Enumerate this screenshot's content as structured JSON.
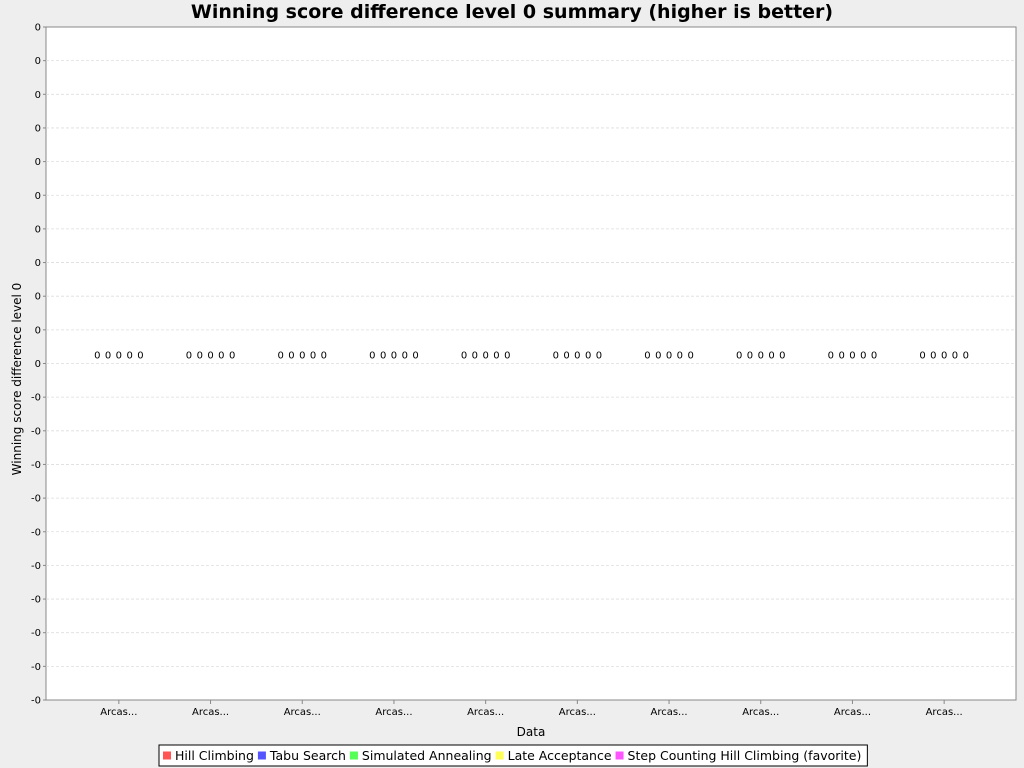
{
  "chart_data": {
    "type": "bar",
    "title": "Winning score difference level 0 summary (higher is better)",
    "xlabel": "Data",
    "ylabel": "Winning score difference level 0",
    "categories": [
      "Arcas...",
      "Arcas...",
      "Arcas...",
      "Arcas...",
      "Arcas...",
      "Arcas...",
      "Arcas...",
      "Arcas...",
      "Arcas...",
      "Arcas..."
    ],
    "series": [
      {
        "name": "Hill Climbing",
        "color": "#ff5555",
        "values": [
          0,
          0,
          0,
          0,
          0,
          0,
          0,
          0,
          0,
          0
        ],
        "labels": [
          "0",
          "0",
          "0",
          "0",
          "0",
          "0",
          "0",
          "0",
          "0",
          "0"
        ]
      },
      {
        "name": "Tabu Search",
        "color": "#5555ff",
        "values": [
          0,
          0,
          0,
          0,
          0,
          0,
          0,
          0,
          0,
          0
        ],
        "labels": [
          "0",
          "0",
          "0",
          "0",
          "0",
          "0",
          "0",
          "0",
          "0",
          "0"
        ]
      },
      {
        "name": "Simulated Annealing",
        "color": "#55ff55",
        "values": [
          0,
          0,
          0,
          0,
          0,
          0,
          0,
          0,
          0,
          0
        ],
        "labels": [
          "0",
          "0",
          "0",
          "0",
          "0",
          "0",
          "0",
          "0",
          "0",
          "0"
        ]
      },
      {
        "name": "Late Acceptance",
        "color": "#ffff55",
        "values": [
          0,
          0,
          0,
          0,
          0,
          0,
          0,
          0,
          0,
          0
        ],
        "labels": [
          "0",
          "0",
          "0",
          "0",
          "0",
          "0",
          "0",
          "0",
          "0",
          "0"
        ]
      },
      {
        "name": "Step Counting Hill Climbing (favorite)",
        "color": "#ff55ff",
        "values": [
          0,
          0,
          0,
          0,
          0,
          0,
          0,
          0,
          0,
          0
        ],
        "labels": [
          "0",
          "0",
          "0",
          "0",
          "0",
          "0",
          "0",
          "0",
          "0",
          "0"
        ]
      }
    ],
    "y_ticks": [
      "0",
      "0",
      "0",
      "0",
      "0",
      "0",
      "0",
      "0",
      "0",
      "0",
      "0",
      "-0",
      "-0",
      "-0",
      "-0",
      "-0",
      "-0",
      "-0",
      "-0",
      "-0",
      "-0"
    ],
    "grid": true,
    "legend": "bottom"
  }
}
